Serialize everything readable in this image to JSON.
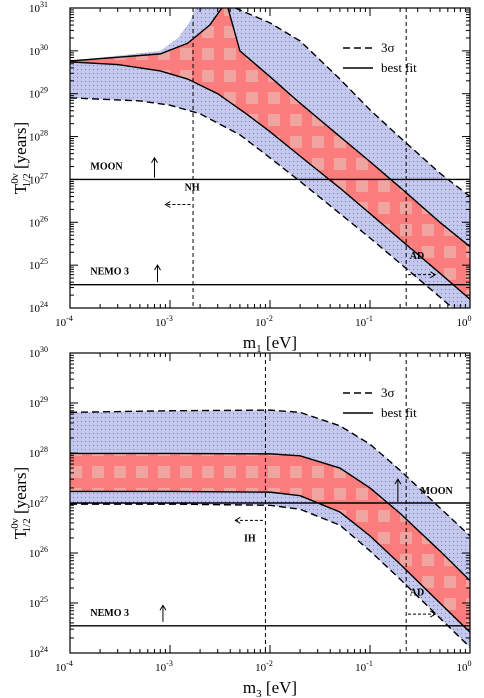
{
  "chart_data": [
    {
      "type": "area",
      "xlabel_main": "m",
      "xlabel_sub": "1",
      "xlabel_unit": " [eV]",
      "ylabel_main": "T",
      "ylabel_sup": "0ν",
      "ylabel_sub": "1/2",
      "ylabel_unit": "  [years]",
      "x_scale": "log",
      "y_scale": "log",
      "xlim": [
        0.0001,
        1
      ],
      "ylim": [
        1e+24,
        1e+31
      ],
      "x_ticks": [
        0.0001,
        0.001,
        0.01,
        0.1,
        1
      ],
      "x_tick_labels": [
        [
          "10",
          "-4"
        ],
        [
          "10",
          "-3"
        ],
        [
          "10",
          "-2"
        ],
        [
          "10",
          "-1"
        ],
        [
          "10",
          "0"
        ]
      ],
      "y_ticks": [
        1e+24,
        1e+25,
        1e+26,
        1e+27,
        1e+28,
        1e+29,
        1e+30,
        1e+31
      ],
      "y_tick_labels": [
        [
          "10",
          "24"
        ],
        [
          "10",
          "25"
        ],
        [
          "10",
          "26"
        ],
        [
          "10",
          "27"
        ],
        [
          "10",
          "28"
        ],
        [
          "10",
          "29"
        ],
        [
          "10",
          "30"
        ],
        [
          "10",
          "31"
        ]
      ],
      "legend": {
        "position": "top-right",
        "entries": [
          {
            "label": "3σ",
            "style": "dashed"
          },
          {
            "label": "best fit",
            "style": "solid"
          }
        ]
      },
      "bands": [
        {
          "name": "3σ region",
          "color": "#c4c8ec",
          "pattern": "dotted",
          "upper": [
            [
              0.0001,
              5.8e+29
            ],
            [
              0.0008,
              1e+30
            ],
            [
              0.0012,
              2e+30
            ],
            [
              0.0016,
              5e+30
            ],
            [
              0.0018,
              1e+31
            ]
          ],
          "upper2": [
            [
              0.0045,
              1e+31
            ],
            [
              0.01,
              4.5e+30
            ],
            [
              0.02,
              1.7e+30
            ],
            [
              0.05,
              2.2e+29
            ],
            [
              0.1,
              4.2e+28
            ],
            [
              0.2,
              9.5e+27
            ],
            [
              0.5,
              1.4e+27
            ],
            [
              1,
              4e+26
            ]
          ],
          "lower": [
            [
              0.0001,
              8e+28
            ],
            [
              0.0005,
              6.8e+28
            ],
            [
              0.001,
              5.4e+28
            ],
            [
              0.002,
              3.4e+28
            ],
            [
              0.005,
              1.1e+28
            ],
            [
              0.01,
              3.2e+27
            ],
            [
              0.02,
              9e+26
            ],
            [
              0.05,
              1.6e+26
            ],
            [
              0.1,
              4.3e+25
            ],
            [
              0.2,
              1.1e+25
            ],
            [
              0.5,
              1.8e+24
            ],
            [
              1,
              4.5e+23
            ]
          ]
        },
        {
          "name": "best-fit region",
          "color": "#fa7c7c",
          "pattern": "squares",
          "upper": [
            [
              0.0001,
              5.8e+29
            ],
            [
              0.0008,
              8.5e+29
            ],
            [
              0.0015,
              1.5e+30
            ],
            [
              0.0025,
              4e+30
            ],
            [
              0.0033,
              1e+31
            ]
          ],
          "upper2": [
            [
              0.0038,
              1e+31
            ],
            [
              0.005,
              1e+30
            ],
            [
              0.01,
              2.5e+29
            ],
            [
              0.02,
              6e+28
            ],
            [
              0.05,
              1e+28
            ],
            [
              0.1,
              2.6e+27
            ],
            [
              0.2,
              6.5e+26
            ],
            [
              0.5,
              1e+26
            ],
            [
              1,
              2.7e+25
            ]
          ],
          "lower": [
            [
              0.0001,
              5.5e+29
            ],
            [
              0.0003,
              4.8e+29
            ],
            [
              0.0008,
              3.4e+29
            ],
            [
              0.0015,
              2.2e+29
            ],
            [
              0.003,
              1e+29
            ],
            [
              0.006,
              3.2e+28
            ],
            [
              0.01,
              1.3e+28
            ],
            [
              0.02,
              3.5e+27
            ],
            [
              0.05,
              6.3e+26
            ],
            [
              0.1,
              1.6e+26
            ],
            [
              0.2,
              4e+25
            ],
            [
              0.5,
              6.5e+24
            ],
            [
              1,
              1.6e+24
            ]
          ]
        }
      ],
      "curves": [
        {
          "style": "solid",
          "points": [
            [
              0.0001,
              5.8e+29
            ],
            [
              0.0008,
              8.5e+29
            ],
            [
              0.0015,
              1.5e+30
            ],
            [
              0.0025,
              4e+30
            ],
            [
              0.0033,
              1e+31
            ]
          ]
        },
        {
          "style": "solid",
          "points": [
            [
              0.0038,
              1e+31
            ],
            [
              0.005,
              1e+30
            ],
            [
              0.01,
              2.5e+29
            ],
            [
              0.02,
              6e+28
            ],
            [
              0.05,
              1e+28
            ],
            [
              0.1,
              2.6e+27
            ],
            [
              0.2,
              6.5e+26
            ],
            [
              0.5,
              1e+26
            ],
            [
              1,
              2.7e+25
            ]
          ]
        },
        {
          "style": "solid",
          "points": [
            [
              0.0001,
              5.5e+29
            ],
            [
              0.0003,
              4.8e+29
            ],
            [
              0.0008,
              3.4e+29
            ],
            [
              0.0015,
              2.2e+29
            ],
            [
              0.003,
              1e+29
            ],
            [
              0.006,
              3.2e+28
            ],
            [
              0.01,
              1.3e+28
            ],
            [
              0.02,
              3.5e+27
            ],
            [
              0.05,
              6.3e+26
            ],
            [
              0.1,
              1.6e+26
            ],
            [
              0.2,
              4e+25
            ],
            [
              0.5,
              6.5e+24
            ],
            [
              1,
              1.6e+24
            ]
          ]
        },
        {
          "style": "dashed",
          "points": [
            [
              0.0045,
              1e+31
            ],
            [
              0.01,
              4.5e+30
            ],
            [
              0.02,
              1.7e+30
            ],
            [
              0.05,
              2.2e+29
            ],
            [
              0.1,
              4.2e+28
            ],
            [
              0.2,
              9.5e+27
            ],
            [
              0.5,
              1.4e+27
            ],
            [
              1,
              4e+26
            ]
          ]
        },
        {
          "style": "dashed",
          "points": [
            [
              0.0001,
              8e+28
            ],
            [
              0.0005,
              6.8e+28
            ],
            [
              0.001,
              5.4e+28
            ],
            [
              0.002,
              3.4e+28
            ],
            [
              0.005,
              1.1e+28
            ],
            [
              0.01,
              3.2e+27
            ],
            [
              0.02,
              9e+26
            ],
            [
              0.05,
              1.6e+26
            ],
            [
              0.1,
              4.3e+25
            ],
            [
              0.2,
              1.1e+25
            ],
            [
              0.5,
              1.8e+24
            ],
            [
              1,
              4.5e+23
            ]
          ]
        }
      ],
      "hlines": [
        {
          "y": 1e+27,
          "label": "MOON"
        },
        {
          "y": 3.5e+24,
          "label": "NEMO 3"
        }
      ],
      "vlines": [
        {
          "x": 0.0017
        },
        {
          "x": 0.23
        }
      ],
      "annotations": [
        {
          "text": "MOON",
          "x": 0.00016,
          "y": 1.7e+27,
          "arrow": "up",
          "ax": 0.0007,
          "ay0": 1.1e+27,
          "ay1": 3.2e+27
        },
        {
          "text": "NEMO 3",
          "x": 0.00016,
          "y": 6e+24,
          "arrow": "up",
          "ax": 0.00075,
          "ay0": 4e+24,
          "ay1": 1e+25
        },
        {
          "text": "NH",
          "x": 0.0014,
          "y": 5.5e+26,
          "arrow": "left",
          "ay": 2.6e+26,
          "ax0": 0.0016,
          "ax1": 0.0009
        },
        {
          "text": "AD",
          "x": 0.25,
          "y": 1.4e+25,
          "arrow": "right",
          "ay": 6e+24,
          "ax0": 0.24,
          "ax1": 0.45
        }
      ]
    },
    {
      "type": "area",
      "xlabel_main": "m",
      "xlabel_sub": "3",
      "xlabel_unit": " [eV]",
      "ylabel_main": "T",
      "ylabel_sup": "0ν",
      "ylabel_sub": "1/2",
      "ylabel_unit": "  [years]",
      "x_scale": "log",
      "y_scale": "log",
      "xlim": [
        0.0001,
        1
      ],
      "ylim": [
        1e+24,
        1e+30
      ],
      "x_ticks": [
        0.0001,
        0.001,
        0.01,
        0.1,
        1
      ],
      "x_tick_labels": [
        [
          "10",
          "-4"
        ],
        [
          "10",
          "-3"
        ],
        [
          "10",
          "-2"
        ],
        [
          "10",
          "-1"
        ],
        [
          "10",
          "0"
        ]
      ],
      "y_ticks": [
        1e+24,
        1e+25,
        1e+26,
        1e+27,
        1e+28,
        1e+29,
        1e+30
      ],
      "y_tick_labels": [
        [
          "10",
          "24"
        ],
        [
          "10",
          "25"
        ],
        [
          "10",
          "26"
        ],
        [
          "10",
          "27"
        ],
        [
          "10",
          "28"
        ],
        [
          "10",
          "29"
        ],
        [
          "10",
          "30"
        ]
      ],
      "legend": {
        "position": "top-right",
        "entries": [
          {
            "label": "3σ",
            "style": "dashed"
          },
          {
            "label": "best fit",
            "style": "solid"
          }
        ]
      },
      "bands": [
        {
          "name": "3σ region",
          "color": "#c4c8ec",
          "pattern": "dotted",
          "upper": [
            [
              0.0001,
              6.5e+28
            ],
            [
              0.001,
              7e+28
            ],
            [
              0.01,
              7.2e+28
            ],
            [
              0.02,
              6.5e+28
            ],
            [
              0.05,
              3.5e+28
            ],
            [
              0.1,
              1.5e+28
            ],
            [
              0.2,
              4.5e+27
            ],
            [
              0.5,
              8e+26
            ],
            [
              1,
              2.2e+26
            ]
          ],
          "lower": [
            [
              0.0001,
              9.5e+26
            ],
            [
              0.001,
              9.5e+26
            ],
            [
              0.01,
              9e+26
            ],
            [
              0.02,
              7.5e+26
            ],
            [
              0.05,
              3.6e+26
            ],
            [
              0.1,
              1.1e+26
            ],
            [
              0.2,
              3e+25
            ],
            [
              0.5,
              5e+24
            ],
            [
              1,
              1.3e+24
            ]
          ]
        },
        {
          "name": "best-fit region",
          "color": "#fa7c7c",
          "pattern": "squares",
          "upper": [
            [
              0.0001,
              9.8e+27
            ],
            [
              0.001,
              9.8e+27
            ],
            [
              0.01,
              9.6e+27
            ],
            [
              0.02,
              8.8e+27
            ],
            [
              0.05,
              5e+27
            ],
            [
              0.1,
              2e+27
            ],
            [
              0.2,
              6.2e+26
            ],
            [
              0.5,
              1.1e+26
            ],
            [
              1,
              2.8e+25
            ]
          ],
          "lower": [
            [
              0.0001,
              1.7e+27
            ],
            [
              0.001,
              1.7e+27
            ],
            [
              0.01,
              1.65e+27
            ],
            [
              0.02,
              1.4e+27
            ],
            [
              0.05,
              6.6e+26
            ],
            [
              0.1,
              2.2e+26
            ],
            [
              0.2,
              6e+25
            ],
            [
              0.5,
              1e+25
            ],
            [
              1,
              2.6e+24
            ]
          ]
        }
      ],
      "curves": [
        {
          "style": "solid",
          "points": [
            [
              0.0001,
              9.8e+27
            ],
            [
              0.001,
              9.8e+27
            ],
            [
              0.01,
              9.6e+27
            ],
            [
              0.02,
              8.8e+27
            ],
            [
              0.05,
              5e+27
            ],
            [
              0.1,
              2e+27
            ],
            [
              0.2,
              6.2e+26
            ],
            [
              0.5,
              1.1e+26
            ],
            [
              1,
              2.8e+25
            ]
          ]
        },
        {
          "style": "solid",
          "points": [
            [
              0.0001,
              1.7e+27
            ],
            [
              0.001,
              1.7e+27
            ],
            [
              0.01,
              1.65e+27
            ],
            [
              0.02,
              1.4e+27
            ],
            [
              0.05,
              6.6e+26
            ],
            [
              0.1,
              2.2e+26
            ],
            [
              0.2,
              6e+25
            ],
            [
              0.5,
              1e+25
            ],
            [
              1,
              2.6e+24
            ]
          ]
        },
        {
          "style": "dashed",
          "points": [
            [
              0.0001,
              6.5e+28
            ],
            [
              0.001,
              7e+28
            ],
            [
              0.01,
              7.2e+28
            ],
            [
              0.02,
              6.5e+28
            ],
            [
              0.05,
              3.5e+28
            ],
            [
              0.1,
              1.5e+28
            ],
            [
              0.2,
              4.5e+27
            ],
            [
              0.5,
              8e+26
            ],
            [
              1,
              2.2e+26
            ]
          ]
        },
        {
          "style": "dashed",
          "points": [
            [
              0.0001,
              9.5e+26
            ],
            [
              0.001,
              9.5e+26
            ],
            [
              0.01,
              9e+26
            ],
            [
              0.02,
              7.5e+26
            ],
            [
              0.05,
              3.6e+26
            ],
            [
              0.1,
              1.1e+26
            ],
            [
              0.2,
              3e+25
            ],
            [
              0.5,
              5e+24
            ],
            [
              1,
              1.3e+24
            ]
          ]
        }
      ],
      "hlines": [
        {
          "y": 1e+27,
          "label": "MOON"
        },
        {
          "y": 3.5e+24,
          "label": "NEMO 3"
        }
      ],
      "vlines": [
        {
          "x": 0.009
        },
        {
          "x": 0.23
        }
      ],
      "annotations": [
        {
          "text": "MOON",
          "x": 0.32,
          "y": 1.5e+27,
          "arrow": "up",
          "ax": 0.19,
          "ay0": 1.05e+27,
          "ay1": 3e+27
        },
        {
          "text": "NEMO 3",
          "x": 0.00016,
          "y": 5.5e+24,
          "arrow": "up",
          "ax": 0.00085,
          "ay0": 4.2e+24,
          "ay1": 9e+24
        },
        {
          "text": "IH",
          "x": 0.0055,
          "y": 1.7e+26,
          "arrow": "left",
          "ay": 4.5e+26,
          "ax0": 0.0085,
          "ax1": 0.0045
        },
        {
          "text": "AD",
          "x": 0.25,
          "y": 1.4e+25,
          "arrow": "right",
          "ay": 6e+24,
          "ax0": 0.24,
          "ax1": 0.45
        }
      ]
    }
  ]
}
